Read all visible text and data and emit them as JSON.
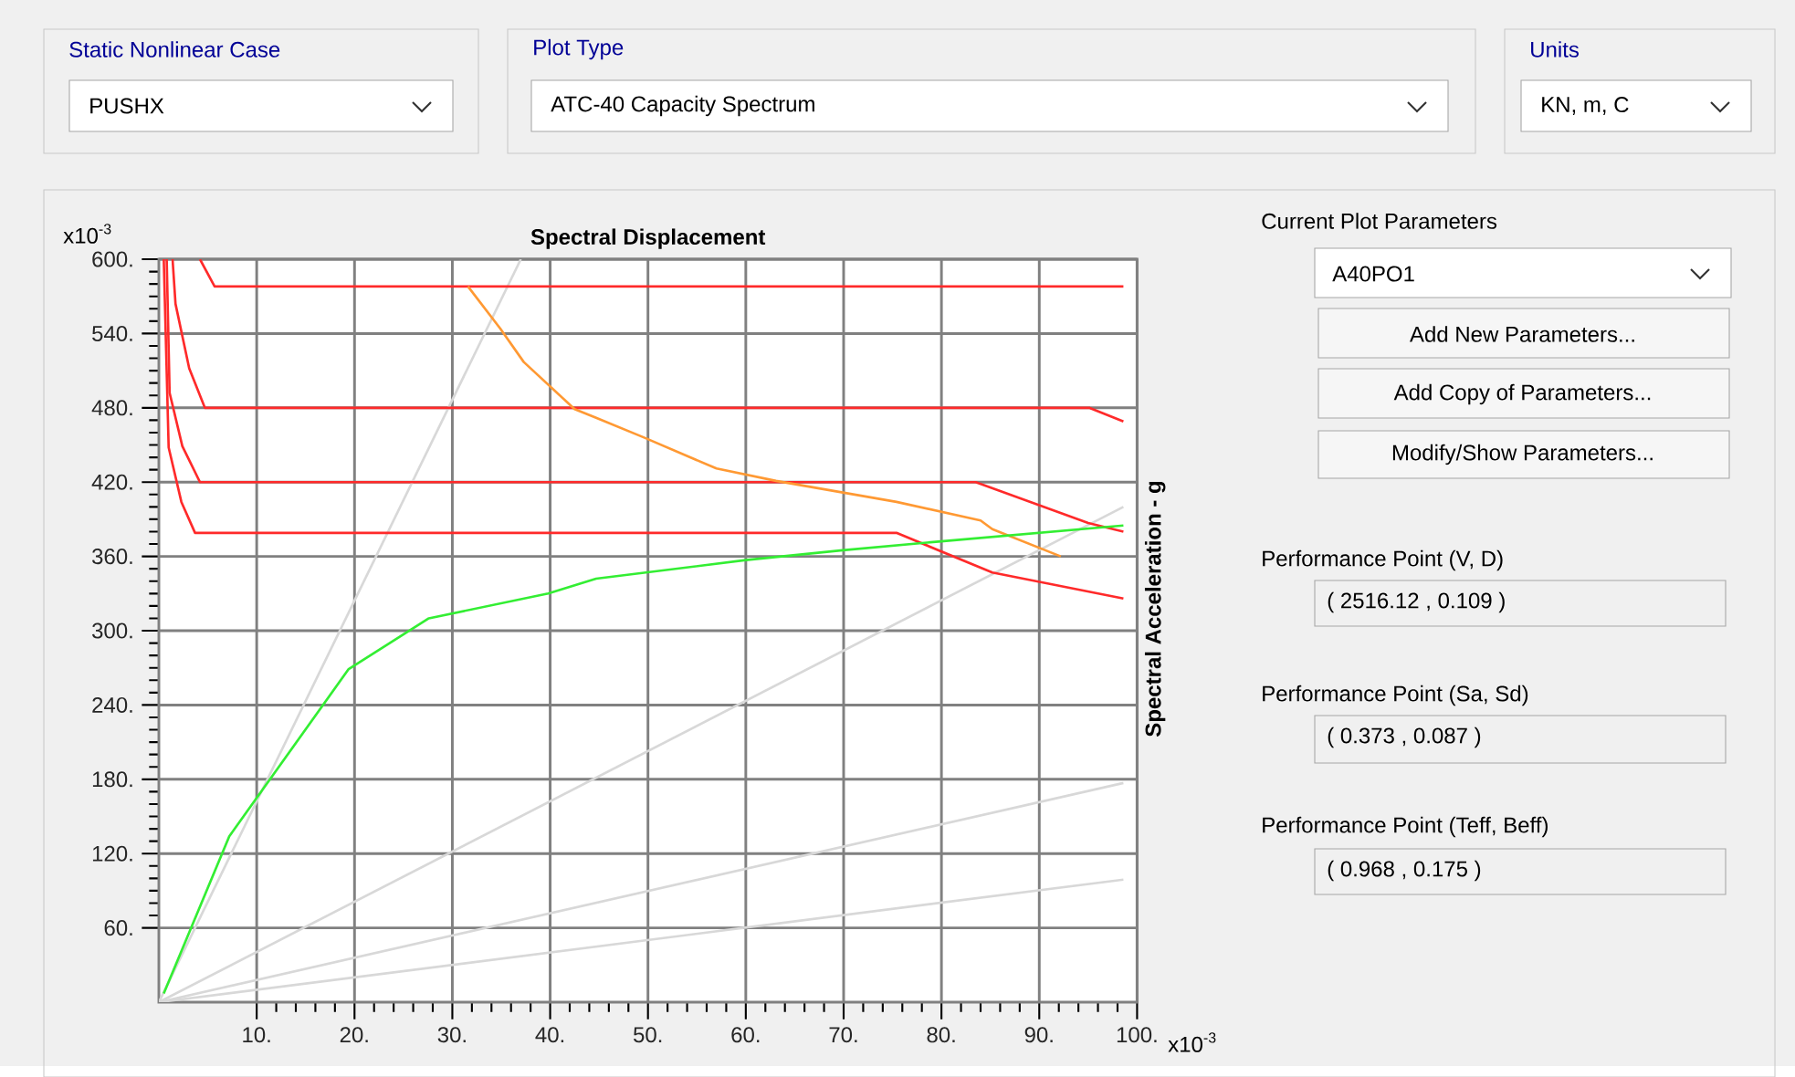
{
  "chart_data": {
    "type": "line",
    "xlabel": "Spectral Displacement",
    "ylabel": "Spectral Acceleration - g",
    "xlim": [
      0,
      100
    ],
    "ylim": [
      0,
      600
    ],
    "xticks": [
      {
        "value": 10,
        "label": "10."
      },
      {
        "value": 20,
        "label": "20."
      },
      {
        "value": 30,
        "label": "30."
      },
      {
        "value": 40,
        "label": "40."
      },
      {
        "value": 50,
        "label": "50."
      },
      {
        "value": 60,
        "label": "60."
      },
      {
        "value": 70,
        "label": "70."
      },
      {
        "value": 80,
        "label": "80."
      },
      {
        "value": 90,
        "label": "90."
      },
      {
        "value": 100,
        "label": "100."
      }
    ],
    "yticks": [
      {
        "value": 60,
        "label": "60."
      },
      {
        "value": 120,
        "label": "120."
      },
      {
        "value": 180,
        "label": "180."
      },
      {
        "value": 240,
        "label": "240."
      },
      {
        "value": 300,
        "label": "300."
      },
      {
        "value": 360,
        "label": "360."
      },
      {
        "value": 420,
        "label": "420."
      },
      {
        "value": 480,
        "label": "480."
      },
      {
        "value": 540,
        "label": "540."
      },
      {
        "value": 600,
        "label": "600."
      }
    ],
    "grid": true,
    "marker": "none",
    "line_style": "solid",
    "series": [
      {
        "color": "#d8d8d8",
        "x": [
          0,
          37
        ],
        "values": [
          0,
          600
        ]
      },
      {
        "color": "#d8d8d8",
        "x": [
          0,
          98.6
        ],
        "values": [
          0,
          400
        ]
      },
      {
        "color": "#d8d8d8",
        "x": [
          0,
          98.6
        ],
        "values": [
          0,
          177
        ]
      },
      {
        "color": "#d8d8d8",
        "x": [
          0,
          98.6
        ],
        "values": [
          0,
          99
        ]
      },
      {
        "color": "#ff2a2a",
        "x": [
          4.2,
          5.7,
          98.6
        ],
        "values": [
          600,
          578,
          578
        ]
      },
      {
        "color": "#ff2a2a",
        "x": [
          1.4,
          1.7,
          3.1,
          4.7,
          95.1,
          98.6
        ],
        "values": [
          600,
          564,
          512,
          480,
          480,
          469
        ]
      },
      {
        "color": "#ff2a2a",
        "x": [
          0.8,
          1.1,
          2.4,
          4.2,
          83.5,
          95,
          98.6
        ],
        "values": [
          600,
          492,
          449,
          420,
          420,
          387,
          380
        ]
      },
      {
        "color": "#ff2a2a",
        "x": [
          0.5,
          1.0,
          2.3,
          3.7,
          75.4,
          85.2,
          98.6
        ],
        "values": [
          600,
          448,
          404,
          379,
          379,
          347,
          326
        ]
      },
      {
        "color": "#ff9933",
        "x": [
          31.6,
          34.9,
          37.3,
          42.5,
          44.7,
          49.6,
          57,
          63.1,
          75.4,
          84,
          85.2,
          92.2
        ],
        "values": [
          578,
          544,
          517,
          479,
          472,
          456,
          431,
          421,
          404,
          389,
          382,
          360
        ]
      },
      {
        "color": "#33ee33",
        "x": [
          0.5,
          7.2,
          19.4,
          27.6,
          39.8,
          44.7,
          60,
          69.9,
          79.7,
          98.6
        ],
        "values": [
          7,
          134,
          269,
          310,
          330,
          342,
          357,
          365,
          372,
          385
        ]
      }
    ],
    "annotations": [
      "Static Nonlinear Case",
      "PUSHX",
      "Plot Type",
      "ATC-40 Capacity Spectrum",
      "Units",
      "KN, m, C",
      "Current Plot Parameters",
      "A40PO1",
      "Add New Parameters...",
      "Add Copy of Parameters...",
      "Modify/Show Parameters...",
      "Performance Point (V, D)",
      "( 2516.12 , 0.109 )",
      "Performance Point (Sa, Sd)",
      "( 0.373 , 0.087 )",
      "Performance Point (Teff, Beff)",
      "( 0.968 , 0.175 )",
      "x10$^{-3}$",
      "x10$^{-3}$"
    ]
  }
}
